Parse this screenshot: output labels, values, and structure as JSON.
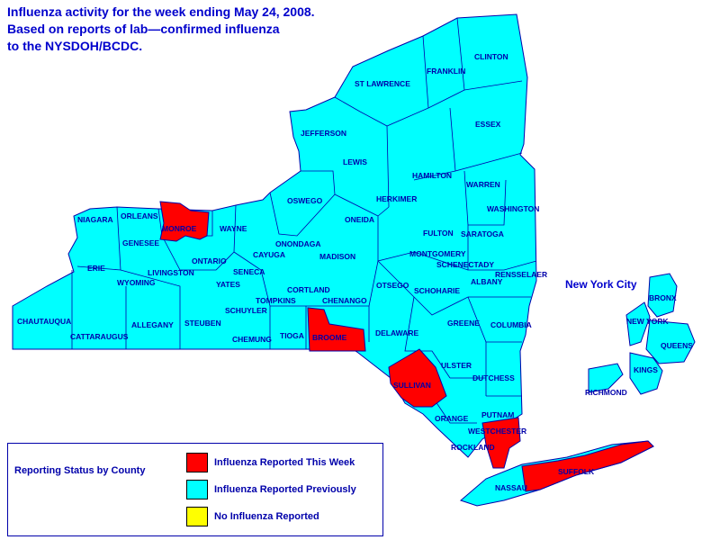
{
  "title_lines": [
    "Influenza activity for the week ending May 24, 2008.",
    "Based on reports of lab—confirmed influenza",
    "to the NYSDOH/BCDC."
  ],
  "colors": {
    "reported_this_week": "#ff0000",
    "reported_previously": "#00ffff",
    "no_influenza": "#ffff00",
    "outline": "#0000aa",
    "text": "#0000cc"
  },
  "nyc_label": "New York City",
  "legend": {
    "title": "Reporting Status by County",
    "items": [
      {
        "label": "Influenza Reported This Week",
        "status": "reported_this_week"
      },
      {
        "label": "Influenza Reported Previously",
        "status": "reported_previously"
      },
      {
        "label": "No Influenza Reported",
        "status": "no_influenza"
      }
    ]
  },
  "counties": [
    {
      "name": "CLINTON",
      "status": "reported_previously"
    },
    {
      "name": "FRANKLIN",
      "status": "reported_previously"
    },
    {
      "name": "ST LAWRENCE",
      "status": "reported_previously"
    },
    {
      "name": "ESSEX",
      "status": "reported_previously"
    },
    {
      "name": "JEFFERSON",
      "status": "reported_previously"
    },
    {
      "name": "LEWIS",
      "status": "reported_previously"
    },
    {
      "name": "HAMILTON",
      "status": "reported_previously"
    },
    {
      "name": "WARREN",
      "status": "reported_previously"
    },
    {
      "name": "HERKIMER",
      "status": "reported_previously"
    },
    {
      "name": "OSWEGO",
      "status": "reported_previously"
    },
    {
      "name": "ONEIDA",
      "status": "reported_previously"
    },
    {
      "name": "WASHINGTON",
      "status": "reported_previously"
    },
    {
      "name": "NIAGARA",
      "status": "reported_previously"
    },
    {
      "name": "ORLEANS",
      "status": "reported_previously"
    },
    {
      "name": "MONROE",
      "status": "reported_this_week"
    },
    {
      "name": "WAYNE",
      "status": "reported_previously"
    },
    {
      "name": "GENESEE",
      "status": "reported_previously"
    },
    {
      "name": "ONONDAGA",
      "status": "reported_previously"
    },
    {
      "name": "FULTON",
      "status": "reported_previously"
    },
    {
      "name": "SARATOGA",
      "status": "reported_previously"
    },
    {
      "name": "CAYUGA",
      "status": "reported_previously"
    },
    {
      "name": "MADISON",
      "status": "reported_previously"
    },
    {
      "name": "MONTGOMERY",
      "status": "reported_previously"
    },
    {
      "name": "SCHENECTADY",
      "status": "reported_previously"
    },
    {
      "name": "ERIE",
      "status": "reported_previously"
    },
    {
      "name": "ONTARIO",
      "status": "reported_previously"
    },
    {
      "name": "LIVINGSTON",
      "status": "reported_previously"
    },
    {
      "name": "SENECA",
      "status": "reported_previously"
    },
    {
      "name": "RENSSELAER",
      "status": "reported_previously"
    },
    {
      "name": "WYOMING",
      "status": "reported_previously"
    },
    {
      "name": "YATES",
      "status": "reported_previously"
    },
    {
      "name": "OTSEGO",
      "status": "reported_previously"
    },
    {
      "name": "ALBANY",
      "status": "reported_previously"
    },
    {
      "name": "CORTLAND",
      "status": "reported_previously"
    },
    {
      "name": "SCHOHARIE",
      "status": "reported_previously"
    },
    {
      "name": "TOMPKINS",
      "status": "reported_previously"
    },
    {
      "name": "CHENANGO",
      "status": "reported_previously"
    },
    {
      "name": "SCHUYLER",
      "status": "reported_previously"
    },
    {
      "name": "CHAUTAUQUA",
      "status": "reported_previously"
    },
    {
      "name": "ALLEGANY",
      "status": "reported_previously"
    },
    {
      "name": "STEUBEN",
      "status": "reported_previously"
    },
    {
      "name": "GREENE",
      "status": "reported_previously"
    },
    {
      "name": "COLUMBIA",
      "status": "reported_previously"
    },
    {
      "name": "CATTARAUGUS",
      "status": "reported_previously"
    },
    {
      "name": "DELAWARE",
      "status": "reported_previously"
    },
    {
      "name": "CHEMUNG",
      "status": "reported_previously"
    },
    {
      "name": "TIOGA",
      "status": "reported_previously"
    },
    {
      "name": "BROOME",
      "status": "reported_this_week"
    },
    {
      "name": "ULSTER",
      "status": "reported_previously"
    },
    {
      "name": "DUTCHESS",
      "status": "reported_previously"
    },
    {
      "name": "SULLIVAN",
      "status": "reported_this_week"
    },
    {
      "name": "PUTNAM",
      "status": "reported_previously"
    },
    {
      "name": "ORANGE",
      "status": "reported_previously"
    },
    {
      "name": "WESTCHESTER",
      "status": "reported_this_week"
    },
    {
      "name": "ROCKLAND",
      "status": "reported_previously"
    },
    {
      "name": "SUFFOLK",
      "status": "reported_this_week"
    },
    {
      "name": "NASSAU",
      "status": "reported_previously"
    },
    {
      "name": "BRONX",
      "status": "reported_previously"
    },
    {
      "name": "NEW YORK",
      "status": "reported_previously"
    },
    {
      "name": "QUEENS",
      "status": "reported_previously"
    },
    {
      "name": "KINGS",
      "status": "reported_previously"
    },
    {
      "name": "RICHMOND",
      "status": "reported_previously"
    }
  ]
}
